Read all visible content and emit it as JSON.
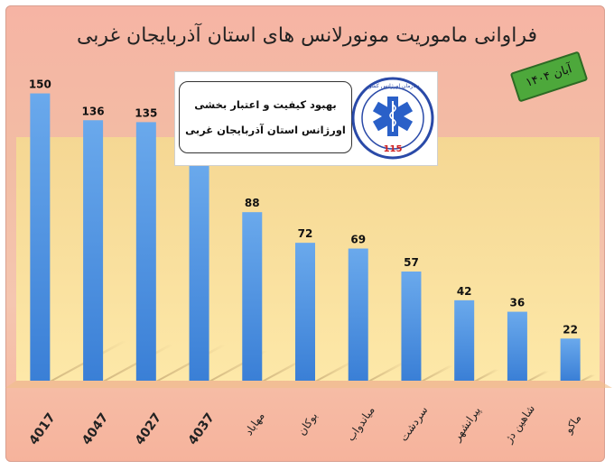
{
  "title": "فراوانی ماموریت مونورلانس های استان آذربایجان غربی",
  "date_badge": "آبان ۱۴۰۴",
  "org": {
    "line1": "بهبود کیفیت و اعتبار بخشی",
    "line2": "اورژانس استان آذربایجان غربی",
    "logo_text_top": "سازمان اورژانس کشور",
    "logo_number": "115",
    "logo_icon": "star-of-life-icon"
  },
  "colors": {
    "bar_top": "#6aa9ec",
    "bar_bottom": "#3a7fd6",
    "plot_bg_top": "#f4d79a",
    "plot_bg_bottom": "#fde7a4",
    "badge": "#4da83b"
  },
  "chart_data": {
    "type": "bar",
    "title": "فراوانی ماموریت مونورلانس های استان آذربایجان غربی",
    "categories": [
      "4017",
      "4047",
      "4027",
      "4037",
      "مهاباد",
      "بوکان",
      "میاندواب",
      "سردشت",
      "پیرانشهر",
      "شاهین دژ",
      "ماکو"
    ],
    "values": [
      150,
      136,
      135,
      113,
      88,
      72,
      69,
      57,
      42,
      36,
      22
    ],
    "ylim": [
      0,
      160
    ],
    "grid": false,
    "legend": "none",
    "data_labels": true
  }
}
